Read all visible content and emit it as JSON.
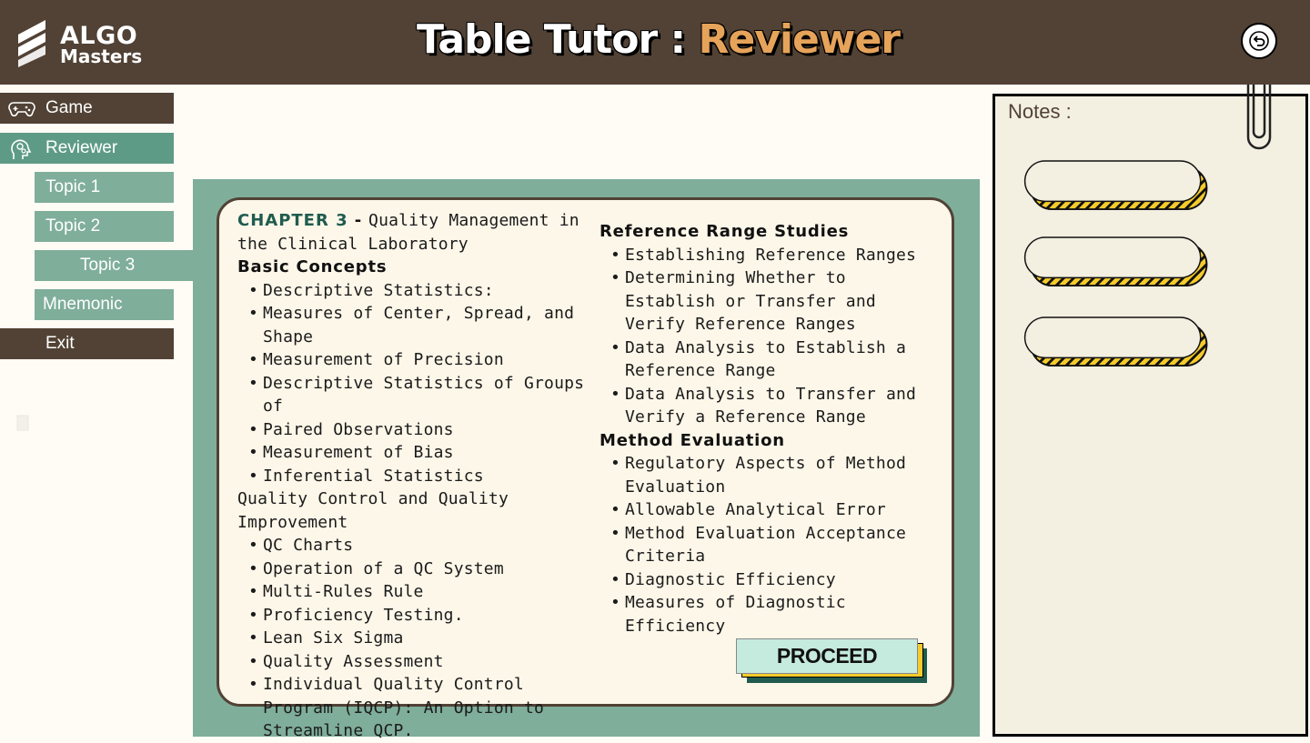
{
  "header": {
    "logo_line1": "ALGO",
    "logo_line2": "Masters",
    "title_part1": "Table Tutor : ",
    "title_part2": "Reviewer",
    "back_icon": "undo-arrow-icon"
  },
  "sidebar": {
    "game": "Game",
    "reviewer": "Reviewer",
    "topics": [
      "Topic 1",
      "Topic 2",
      "Topic 3"
    ],
    "mnemonic": "Mnemonic",
    "exit": "Exit",
    "active": "Topic 3"
  },
  "content": {
    "chapter_label": "CHAPTER 3",
    "chapter_sep": " - ",
    "chapter_title": "Quality Management in the Clinical Laboratory",
    "sections_left": [
      {
        "heading": "Basic Concepts",
        "bold": true,
        "items": [
          "Descriptive Statistics:",
          "Measures of Center, Spread, and Shape",
          "Measurement of Precision",
          "Descriptive Statistics of Groups of",
          "Paired Observations",
          "Measurement of Bias",
          "Inferential Statistics"
        ]
      },
      {
        "heading": "Quality Control and Quality Improvement",
        "bold": false,
        "items": [
          "QC Charts",
          "Operation of a QC System",
          "Multi-Rules Rule",
          "Proficiency Testing.",
          "Lean Six Sigma",
          "Quality Assessment",
          "Individual Quality Control Program (IQCP): An Option to Streamline QCP."
        ]
      }
    ],
    "sections_right": [
      {
        "heading": "Reference Range Studies",
        "items": [
          "Establishing Reference Ranges",
          "Determining Whether to Establish or Transfer and Verify Reference Ranges",
          "Data Analysis to Establish a Reference Range",
          "Data Analysis to Transfer and Verify a Reference Range"
        ]
      },
      {
        "heading": "Method Evaluation",
        "items": [
          "Regulatory Aspects of Method Evaluation",
          "Allowable Analytical Error",
          "Method Evaluation Acceptance Criteria",
          "Diagnostic Efficiency",
          "Measures of Diagnostic Efficiency"
        ]
      }
    ],
    "proceed_label": "PROCEED"
  },
  "notes": {
    "label": "Notes :",
    "slots": [
      "",
      "",
      ""
    ]
  },
  "colors": {
    "header_bg": "#514235",
    "accent_green": "#5e9b87",
    "panel_green": "#7fae9b",
    "title_accent": "#e6a35a",
    "highlight_yellow": "#f5cb2c"
  }
}
